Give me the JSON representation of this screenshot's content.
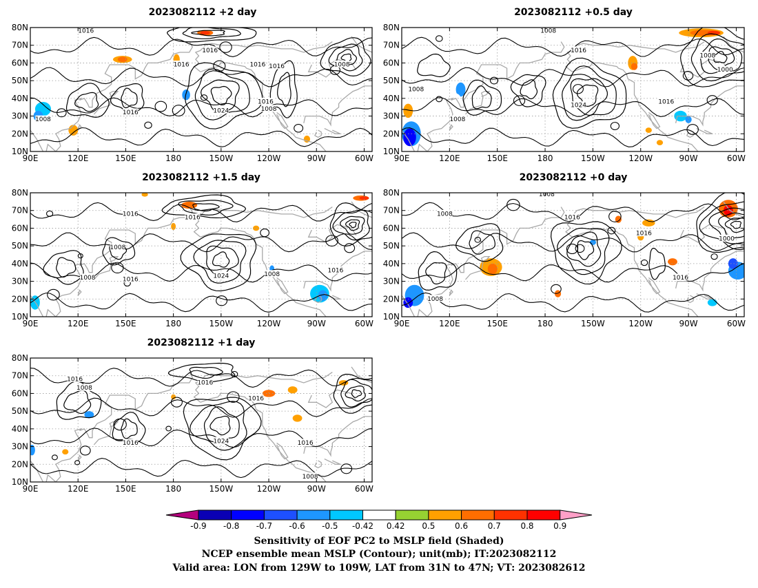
{
  "panels": [
    {
      "title": "2023082112 +2 day",
      "contour_labels": [
        {
          "text": "1016",
          "lon": 125,
          "lat": 78
        },
        {
          "text": "1016",
          "lon": -157,
          "lat": 67
        },
        {
          "text": "1016",
          "lon": -175,
          "lat": 59
        },
        {
          "text": "1016",
          "lon": -127,
          "lat": 59
        },
        {
          "text": "1016",
          "lon": -115,
          "lat": 58
        },
        {
          "text": "1008",
          "lon": -74,
          "lat": 59
        },
        {
          "text": "1016",
          "lon": 153,
          "lat": 32
        },
        {
          "text": "1024",
          "lon": -150,
          "lat": 33
        },
        {
          "text": "1016",
          "lon": -122,
          "lat": 38
        },
        {
          "text": "1008",
          "lon": -120,
          "lat": 34
        },
        {
          "text": "1008",
          "lon": 98,
          "lat": 28
        }
      ],
      "shaded": [
        {
          "lon": -160,
          "lat": 77,
          "rx": 5,
          "ry": 1.6,
          "v": 0.6
        },
        {
          "lon": -160,
          "lat": 77,
          "rx": 3,
          "ry": 1,
          "v": 0.7
        },
        {
          "lon": -178,
          "lat": 62,
          "rx": 2,
          "ry": 3,
          "v": 0.5
        },
        {
          "lon": 148,
          "lat": 62,
          "rx": 6,
          "ry": 2,
          "v": 0.5
        },
        {
          "lon": 148,
          "lat": 62,
          "rx": 3,
          "ry": 1.5,
          "v": 0.6
        },
        {
          "lon": -172,
          "lat": 42,
          "rx": 2.5,
          "ry": 3,
          "v": -0.6
        },
        {
          "lon": -175,
          "lat": 38,
          "rx": 2,
          "ry": 2.5,
          "v": -0.42
        },
        {
          "lon": 117,
          "lat": 22,
          "rx": 3,
          "ry": 3,
          "v": 0.5
        },
        {
          "lon": 98,
          "lat": 34,
          "rx": 5,
          "ry": 4,
          "v": -0.5
        },
        {
          "lon": 95,
          "lat": 30,
          "rx": 3,
          "ry": 3,
          "v": -0.6
        },
        {
          "lon": -92,
          "lat": 22,
          "rx": 3,
          "ry": 2,
          "v": -0.42
        },
        {
          "lon": 92,
          "lat": 48,
          "rx": 2,
          "ry": 2,
          "v": -0.42
        },
        {
          "lon": -96,
          "lat": 17,
          "rx": 2,
          "ry": 2,
          "v": 0.5
        }
      ]
    },
    {
      "title": "2023082112 +0.5 day",
      "contour_labels": [
        {
          "text": "1008",
          "lon": -178,
          "lat": 78
        },
        {
          "text": "1016",
          "lon": -159,
          "lat": 67
        },
        {
          "text": "1008",
          "lon": -78,
          "lat": 64
        },
        {
          "text": "1000",
          "lon": -67,
          "lat": 56
        },
        {
          "text": "1008",
          "lon": 99,
          "lat": 45
        },
        {
          "text": "1008",
          "lon": 125,
          "lat": 28
        },
        {
          "text": "1024",
          "lon": -159,
          "lat": 36
        },
        {
          "text": "1016",
          "lon": -104,
          "lat": 38
        }
      ],
      "shaded": [
        {
          "lon": -82,
          "lat": 77,
          "rx": 14,
          "ry": 2.5,
          "v": 0.5
        },
        {
          "lon": -80,
          "lat": 77,
          "rx": 9,
          "ry": 1.7,
          "v": 0.6
        },
        {
          "lon": -74,
          "lat": 77,
          "rx": 4,
          "ry": 1.2,
          "v": 0.7
        },
        {
          "lon": -125,
          "lat": 60,
          "rx": 3,
          "ry": 4,
          "v": 0.5
        },
        {
          "lon": -124,
          "lat": 58,
          "rx": 2,
          "ry": 2,
          "v": 0.6
        },
        {
          "lon": 125,
          "lat": 68,
          "rx": 3,
          "ry": 2,
          "v": -0.42
        },
        {
          "lon": 127,
          "lat": 45,
          "rx": 3,
          "ry": 4,
          "v": -0.6
        },
        {
          "lon": 123,
          "lat": 40,
          "rx": 4,
          "ry": 3,
          "v": -0.42
        },
        {
          "lon": 96,
          "lat": 20,
          "rx": 6,
          "ry": 7,
          "v": -0.6
        },
        {
          "lon": 95,
          "lat": 18,
          "rx": 4,
          "ry": 5,
          "v": -0.8
        },
        {
          "lon": 94,
          "lat": 33,
          "rx": 3,
          "ry": 4,
          "v": 0.5
        },
        {
          "lon": -95,
          "lat": 30,
          "rx": 4,
          "ry": 3,
          "v": -0.5
        },
        {
          "lon": -90,
          "lat": 28,
          "rx": 2,
          "ry": 2,
          "v": -0.6
        },
        {
          "lon": -115,
          "lat": 22,
          "rx": 2,
          "ry": 1.5,
          "v": 0.5
        },
        {
          "lon": -108,
          "lat": 15,
          "rx": 2,
          "ry": 1.5,
          "v": 0.5
        },
        {
          "lon": -155,
          "lat": 48,
          "rx": 1.5,
          "ry": 1.5,
          "v": -0.42
        }
      ]
    },
    {
      "title": "2023082112 +1.5 day",
      "contour_labels": [
        {
          "text": "1016",
          "lon": 153,
          "lat": 68
        },
        {
          "text": "1016",
          "lon": -168,
          "lat": 66
        },
        {
          "text": "1008",
          "lon": 145,
          "lat": 49
        },
        {
          "text": "1008",
          "lon": 126,
          "lat": 32
        },
        {
          "text": "1016",
          "lon": 153,
          "lat": 31
        },
        {
          "text": "1024",
          "lon": -150,
          "lat": 33
        },
        {
          "text": "1008",
          "lon": -118,
          "lat": 34
        },
        {
          "text": "1016",
          "lon": -78,
          "lat": 36
        }
      ],
      "shaded": [
        {
          "lon": -62,
          "lat": 77,
          "rx": 5,
          "ry": 1.5,
          "v": 0.6
        },
        {
          "lon": -60,
          "lat": 77,
          "rx": 3,
          "ry": 1,
          "v": 0.7
        },
        {
          "lon": -170,
          "lat": 73,
          "rx": 5,
          "ry": 2,
          "v": 0.6
        },
        {
          "lon": 162,
          "lat": 79,
          "rx": 2,
          "ry": 1.2,
          "v": 0.5
        },
        {
          "lon": -180,
          "lat": 61,
          "rx": 1.5,
          "ry": 2,
          "v": 0.5
        },
        {
          "lon": -128,
          "lat": 60,
          "rx": 2,
          "ry": 1.5,
          "v": 0.5
        },
        {
          "lon": -88,
          "lat": 23,
          "rx": 6,
          "ry": 5,
          "v": -0.5
        },
        {
          "lon": -86,
          "lat": 22,
          "rx": 3,
          "ry": 3,
          "v": -0.6
        },
        {
          "lon": -118,
          "lat": 37,
          "rx": 1.5,
          "ry": 2,
          "v": -0.6
        },
        {
          "lon": 93,
          "lat": 18,
          "rx": 3,
          "ry": 4,
          "v": -0.5
        },
        {
          "lon": 102,
          "lat": 34,
          "rx": 2,
          "ry": 2,
          "v": -0.42
        },
        {
          "lon": -150,
          "lat": 53,
          "rx": 1.5,
          "ry": 1.5,
          "v": -0.42
        }
      ]
    },
    {
      "title": "2023082112 +0 day",
      "contour_labels": [
        {
          "text": "1008",
          "lon": -179,
          "lat": 79
        },
        {
          "text": "1008",
          "lon": 117,
          "lat": 68
        },
        {
          "text": "1016",
          "lon": -163,
          "lat": 66
        },
        {
          "text": "1016",
          "lon": -118,
          "lat": 57
        },
        {
          "text": "1000",
          "lon": -66,
          "lat": 54
        },
        {
          "text": "1016",
          "lon": -95,
          "lat": 32
        },
        {
          "text": "1008",
          "lon": 111,
          "lat": 20
        }
      ],
      "shaded": [
        {
          "lon": -65,
          "lat": 71,
          "rx": 6,
          "ry": 5,
          "v": 0.6
        },
        {
          "lon": -65,
          "lat": 70,
          "rx": 3,
          "ry": 3,
          "v": 0.8
        },
        {
          "lon": -115,
          "lat": 63,
          "rx": 4,
          "ry": 2,
          "v": 0.5
        },
        {
          "lon": -134,
          "lat": 65,
          "rx": 2,
          "ry": 2,
          "v": 0.6
        },
        {
          "lon": 146,
          "lat": 38,
          "rx": 7,
          "ry": 5,
          "v": 0.5
        },
        {
          "lon": 147,
          "lat": 37,
          "rx": 3,
          "ry": 3,
          "v": 0.6
        },
        {
          "lon": -100,
          "lat": 41,
          "rx": 3,
          "ry": 2,
          "v": 0.6
        },
        {
          "lon": -120,
          "lat": 55,
          "rx": 2,
          "ry": 2,
          "v": 0.5
        },
        {
          "lon": -172,
          "lat": 23,
          "rx": 2,
          "ry": 2,
          "v": 0.6
        },
        {
          "lon": 98,
          "lat": 22,
          "rx": 6,
          "ry": 6,
          "v": -0.6
        },
        {
          "lon": 94,
          "lat": 18,
          "rx": 3,
          "ry": 3,
          "v": -0.8
        },
        {
          "lon": -59,
          "lat": 36,
          "rx": 6,
          "ry": 5,
          "v": -0.6
        },
        {
          "lon": -62,
          "lat": 40,
          "rx": 3,
          "ry": 3,
          "v": -0.7
        },
        {
          "lon": -75,
          "lat": 18,
          "rx": 3,
          "ry": 2,
          "v": -0.5
        },
        {
          "lon": -150,
          "lat": 52,
          "rx": 2,
          "ry": 1.5,
          "v": -0.6
        },
        {
          "lon": -82,
          "lat": 25,
          "rx": 2,
          "ry": 1.5,
          "v": -0.42
        }
      ]
    },
    {
      "title": "2023082112 +1 day",
      "contour_labels": [
        {
          "text": "1016",
          "lon": 118,
          "lat": 68
        },
        {
          "text": "1008",
          "lon": 124,
          "lat": 63
        },
        {
          "text": "1016",
          "lon": -160,
          "lat": 66
        },
        {
          "text": "1016",
          "lon": -128,
          "lat": 57
        },
        {
          "text": "1016",
          "lon": 153,
          "lat": 32
        },
        {
          "text": "1024",
          "lon": -150,
          "lat": 33
        },
        {
          "text": "1016",
          "lon": -97,
          "lat": 32
        },
        {
          "text": "1008",
          "lon": -94,
          "lat": 13
        }
      ],
      "shaded": [
        {
          "lon": -120,
          "lat": 60,
          "rx": 4,
          "ry": 2,
          "v": 0.6
        },
        {
          "lon": -105,
          "lat": 62,
          "rx": 3,
          "ry": 2,
          "v": 0.5
        },
        {
          "lon": -73,
          "lat": 66,
          "rx": 3,
          "ry": 1.5,
          "v": 0.5
        },
        {
          "lon": -102,
          "lat": 46,
          "rx": 3,
          "ry": 2,
          "v": 0.5
        },
        {
          "lon": -180,
          "lat": 58,
          "rx": 1.5,
          "ry": 1.5,
          "v": 0.5
        },
        {
          "lon": 92,
          "lat": 20,
          "rx": 3,
          "ry": 7,
          "v": -0.42
        },
        {
          "lon": 91,
          "lat": 28,
          "rx": 2,
          "ry": 3,
          "v": -0.6
        },
        {
          "lon": 127,
          "lat": 48,
          "rx": 3,
          "ry": 2,
          "v": -0.6
        },
        {
          "lon": -90,
          "lat": 22,
          "rx": 4,
          "ry": 3,
          "v": -0.42
        },
        {
          "lon": -180,
          "lat": 33,
          "rx": 1.5,
          "ry": 2,
          "v": -0.42
        },
        {
          "lon": 163,
          "lat": 13,
          "rx": 2,
          "ry": 1.5,
          "v": -0.42
        },
        {
          "lon": 112,
          "lat": 27,
          "rx": 2,
          "ry": 1.5,
          "v": 0.5
        }
      ]
    }
  ],
  "axes": {
    "lon_range": [
      90,
      305
    ],
    "lat_range": [
      10,
      80
    ],
    "x_ticks": [
      "90E",
      "120E",
      "150E",
      "180",
      "150W",
      "120W",
      "90W",
      "60W"
    ],
    "x_tick_values": [
      90,
      120,
      150,
      180,
      210,
      240,
      270,
      300
    ],
    "y_ticks": [
      "10N",
      "20N",
      "30N",
      "40N",
      "50N",
      "60N",
      "70N",
      "80N"
    ],
    "y_tick_values": [
      10,
      20,
      30,
      40,
      50,
      60,
      70,
      80
    ]
  },
  "colorbar": {
    "tick_labels": [
      "-0.9",
      "-0.8",
      "-0.7",
      "-0.6",
      "-0.5",
      "-0.42",
      "0.42",
      "0.5",
      "0.6",
      "0.7",
      "0.8",
      "0.9"
    ],
    "colors": [
      "#0a00b4",
      "#0000ff",
      "#1e50ff",
      "#1e96ff",
      "#00c8ff",
      "#ffffff",
      "#96d232",
      "#ffa000",
      "#ff6e00",
      "#ff3200",
      "#ff0000"
    ],
    "low_arrow_color": "#b4007d",
    "high_arrow_color": "#ffa0c8"
  },
  "caption": {
    "line1": "Sensitivity of EOF PC2 to MSLP field (Shaded)",
    "line2": "NCEP ensemble mean MSLP (Contour); unit(mb); IT:2023082112",
    "line3": "Valid area: LON from 129W to 109W, LAT from 31N to 47N; VT: 2023082612"
  }
}
